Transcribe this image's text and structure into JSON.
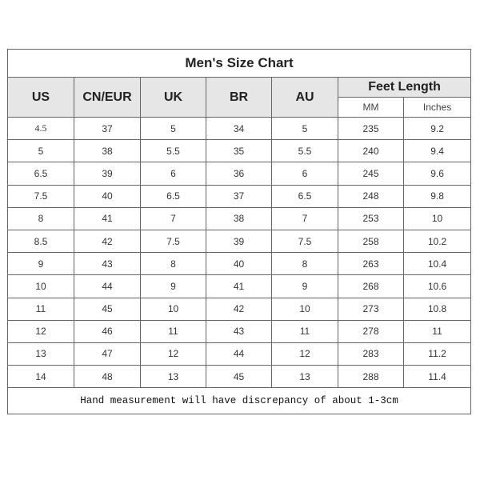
{
  "title": "Men's Size Chart",
  "headers": {
    "us": "US",
    "cn_eur": "CN/EUR",
    "uk": "UK",
    "br": "BR",
    "au": "AU",
    "feet_length": "Feet Length",
    "mm": "MM",
    "inches": "Inches"
  },
  "rows": [
    [
      "4.5",
      "37",
      "5",
      "34",
      "5",
      "235",
      "9.2"
    ],
    [
      "5",
      "38",
      "5.5",
      "35",
      "5.5",
      "240",
      "9.4"
    ],
    [
      "6.5",
      "39",
      "6",
      "36",
      "6",
      "245",
      "9.6"
    ],
    [
      "7.5",
      "40",
      "6.5",
      "37",
      "6.5",
      "248",
      "9.8"
    ],
    [
      "8",
      "41",
      "7",
      "38",
      "7",
      "253",
      "10"
    ],
    [
      "8.5",
      "42",
      "7.5",
      "39",
      "7.5",
      "258",
      "10.2"
    ],
    [
      "9",
      "43",
      "8",
      "40",
      "8",
      "263",
      "10.4"
    ],
    [
      "10",
      "44",
      "9",
      "41",
      "9",
      "268",
      "10.6"
    ],
    [
      "11",
      "45",
      "10",
      "42",
      "10",
      "273",
      "10.8"
    ],
    [
      "12",
      "46",
      "11",
      "43",
      "11",
      "278",
      "11"
    ],
    [
      "13",
      "47",
      "12",
      "44",
      "12",
      "283",
      "11.2"
    ],
    [
      "14",
      "48",
      "13",
      "45",
      "13",
      "288",
      "11.4"
    ]
  ],
  "footer": "Hand measurement will have discrepancy of about 1-3cm",
  "colors": {
    "header_bg": "#e6e6e6",
    "border": "#666666"
  }
}
